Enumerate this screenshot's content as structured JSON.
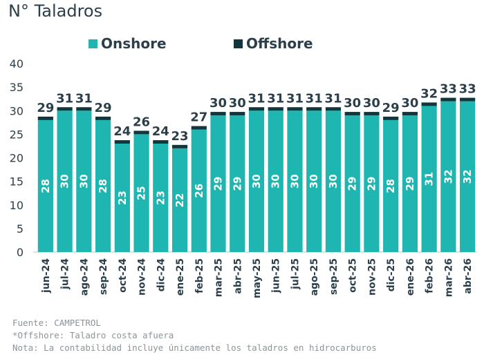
{
  "chart_data": {
    "type": "bar",
    "title": "N° Taladros",
    "xlabel": "",
    "ylabel": "",
    "ylim": [
      0,
      40
    ],
    "yticks": [
      0,
      5,
      10,
      15,
      20,
      25,
      30,
      35,
      40
    ],
    "grid": false,
    "legend": "top",
    "stacked": true,
    "categories": [
      "jun-24",
      "jul-24",
      "ago-24",
      "sep-24",
      "oct-24",
      "nov-24",
      "dic-24",
      "ene-25",
      "feb-25",
      "mar-25",
      "abr-25",
      "may-25",
      "jun-25",
      "jul-25",
      "ago-25",
      "sep-25",
      "oct-25",
      "nov-25",
      "dic-25",
      "ene-26",
      "feb-26",
      "mar-26",
      "abr-26"
    ],
    "series": [
      {
        "name": "Onshore",
        "color": "#1fb5b0",
        "values": [
          28,
          30,
          30,
          28,
          23,
          25,
          23,
          22,
          26,
          29,
          29,
          30,
          30,
          30,
          30,
          30,
          29,
          29,
          28,
          29,
          31,
          32,
          32
        ]
      },
      {
        "name": "Offshore",
        "color": "#11373c",
        "values": [
          1,
          1,
          1,
          1,
          1,
          1,
          1,
          1,
          1,
          1,
          1,
          1,
          1,
          1,
          1,
          1,
          1,
          1,
          1,
          1,
          1,
          1,
          1
        ]
      }
    ],
    "totals": [
      29,
      31,
      31,
      29,
      24,
      26,
      24,
      23,
      27,
      30,
      30,
      31,
      31,
      31,
      31,
      31,
      30,
      30,
      29,
      30,
      32,
      33,
      33
    ]
  },
  "footnotes": {
    "source": "Fuente: CAMPETROL",
    "offshore_note": "*Offshore: Taladro costa afuera",
    "note": "Nota: La contabilidad incluye únicamente los taladros en hidrocarburos"
  }
}
